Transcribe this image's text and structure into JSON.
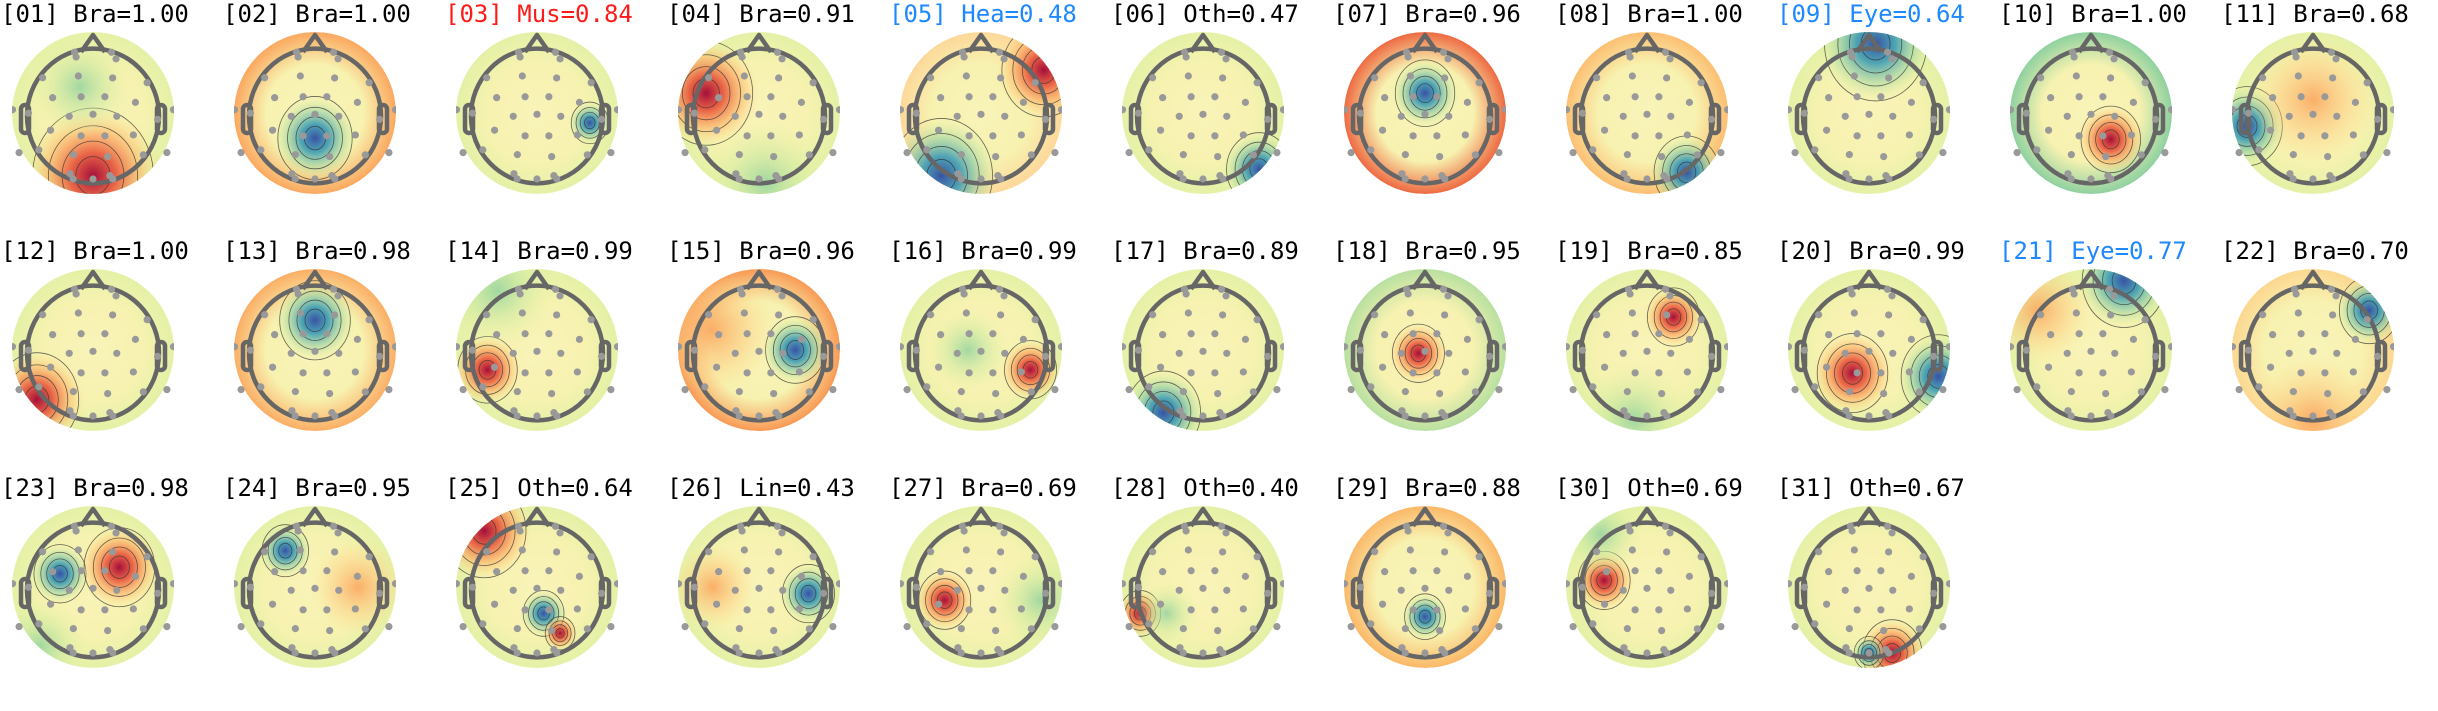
{
  "colors": {
    "Bra": "#000000",
    "Oth": "#000000",
    "Lin": "#000000",
    "Mus": "#ff1a1a",
    "Hea": "#1e88ff",
    "Eye": "#1e88ff",
    "colormap_low": "#3953a4",
    "colormap_mid": "#f7f8b8",
    "colormap_high": "#a50f3a",
    "head_outline": "#666666",
    "electrode": "#999999"
  },
  "chart_data": {
    "type": "heatmap",
    "colormap": "diverging (blue-yellow-red)",
    "components": [
      {
        "title": "[01] Bra=1.00",
        "label": "Bra",
        "score": 1.0
      },
      {
        "title": "[02] Bra=1.00",
        "label": "Bra",
        "score": 1.0
      },
      {
        "title": "[03] Mus=0.84",
        "label": "Mus",
        "score": 0.84
      },
      {
        "title": "[04] Bra=0.91",
        "label": "Bra",
        "score": 0.91
      },
      {
        "title": "[05] Hea=0.48",
        "label": "Hea",
        "score": 0.48
      },
      {
        "title": "[06] Oth=0.47",
        "label": "Oth",
        "score": 0.47
      },
      {
        "title": "[07] Bra=0.96",
        "label": "Bra",
        "score": 0.96
      },
      {
        "title": "[08] Bra=1.00",
        "label": "Bra",
        "score": 1.0
      },
      {
        "title": "[09] Eye=0.64",
        "label": "Eye",
        "score": 0.64
      },
      {
        "title": "[10] Bra=1.00",
        "label": "Bra",
        "score": 1.0
      },
      {
        "title": "[11] Bra=0.68",
        "label": "Bra",
        "score": 0.68
      },
      {
        "title": "[12] Bra=1.00",
        "label": "Bra",
        "score": 1.0
      },
      {
        "title": "[13] Bra=0.98",
        "label": "Bra",
        "score": 0.98
      },
      {
        "title": "[14] Bra=0.99",
        "label": "Bra",
        "score": 0.99
      },
      {
        "title": "[15] Bra=0.96",
        "label": "Bra",
        "score": 0.96
      },
      {
        "title": "[16] Bra=0.99",
        "label": "Bra",
        "score": 0.99
      },
      {
        "title": "[17] Bra=0.89",
        "label": "Bra",
        "score": 0.89
      },
      {
        "title": "[18] Bra=0.95",
        "label": "Bra",
        "score": 0.95
      },
      {
        "title": "[19] Bra=0.85",
        "label": "Bra",
        "score": 0.85
      },
      {
        "title": "[20] Bra=0.99",
        "label": "Bra",
        "score": 0.99
      },
      {
        "title": "[21] Eye=0.77",
        "label": "Eye",
        "score": 0.77
      },
      {
        "title": "[22] Bra=0.70",
        "label": "Bra",
        "score": 0.7
      },
      {
        "title": "[23] Bra=0.98",
        "label": "Bra",
        "score": 0.98
      },
      {
        "title": "[24] Bra=0.95",
        "label": "Bra",
        "score": 0.95
      },
      {
        "title": "[25] Oth=0.64",
        "label": "Oth",
        "score": 0.64
      },
      {
        "title": "[26] Lin=0.43",
        "label": "Lin",
        "score": 0.43
      },
      {
        "title": "[27] Bra=0.69",
        "label": "Bra",
        "score": 0.69
      },
      {
        "title": "[28] Oth=0.40",
        "label": "Oth",
        "score": 0.4
      },
      {
        "title": "[29] Bra=0.88",
        "label": "Bra",
        "score": 0.88
      },
      {
        "title": "[30] Oth=0.69",
        "label": "Oth",
        "score": 0.69
      },
      {
        "title": "[31] Oth=0.67",
        "label": "Oth",
        "score": 0.67
      }
    ]
  }
}
